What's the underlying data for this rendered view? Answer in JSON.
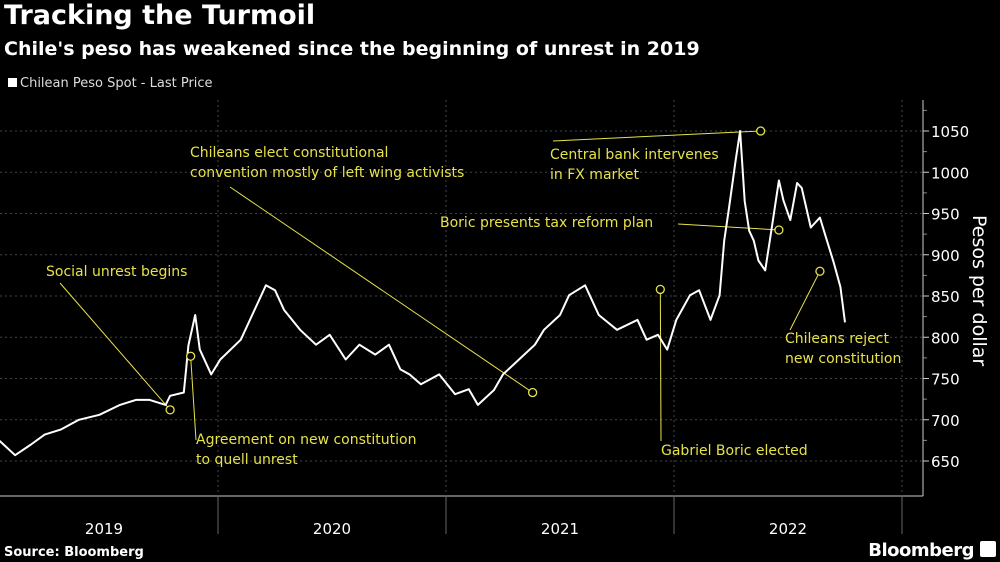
{
  "title": "Tracking the Turmoil",
  "subtitle": "Chile's peso has weakened since the beginning of unrest in 2019",
  "legend": "Chilean Peso Spot - Last Price",
  "source": "Source: Bloomberg",
  "brand": "Bloomberg",
  "colors": {
    "line": "#ffffff",
    "annotation": "#e6e24a",
    "background": "#000000"
  },
  "chart_data": {
    "type": "line",
    "title": "Tracking the Turmoil",
    "ylabel": "Pesos per dollar",
    "ylim": [
      610,
      1085
    ],
    "yticks": [
      650,
      700,
      750,
      800,
      850,
      900,
      950,
      1000,
      1050
    ],
    "xticks": [
      "2019",
      "2020",
      "2021",
      "2022"
    ],
    "grid": true,
    "legend_position": "top-left",
    "series": [
      {
        "name": "Chilean Peso Spot - Last Price",
        "x": [
          2019.04,
          2019.11,
          2019.18,
          2019.24,
          2019.31,
          2019.39,
          2019.48,
          2019.57,
          2019.64,
          2019.7,
          2019.77,
          2019.79,
          2019.85,
          2019.86,
          2019.87,
          2019.9,
          2019.92,
          2019.97,
          2020.01,
          2020.1,
          2020.16,
          2020.21,
          2020.25,
          2020.29,
          2020.36,
          2020.43,
          2020.49,
          2020.56,
          2020.62,
          2020.69,
          2020.75,
          2020.8,
          2020.84,
          2020.89,
          2020.97,
          2021.04,
          2021.1,
          2021.14,
          2021.21,
          2021.25,
          2021.32,
          2021.39,
          2021.43,
          2021.5,
          2021.54,
          2021.61,
          2021.67,
          2021.75,
          2021.84,
          2021.88,
          2021.93,
          2021.97,
          2022.01,
          2022.07,
          2022.11,
          2022.16,
          2022.2,
          2022.22,
          2022.24,
          2022.27,
          2022.29,
          2022.31,
          2022.33,
          2022.35,
          2022.37,
          2022.4,
          2022.42,
          2022.46,
          2022.48,
          2022.51,
          2022.54,
          2022.56,
          2022.6,
          2022.64,
          2022.68,
          2022.7,
          2022.73,
          2022.75
        ],
        "y": [
          675,
          657,
          670,
          682,
          688,
          700,
          706,
          718,
          724,
          724,
          718,
          729,
          733,
          761,
          790,
          827,
          785,
          755,
          773,
          797,
          833,
          863,
          857,
          833,
          809,
          791,
          803,
          773,
          791,
          779,
          791,
          761,
          755,
          743,
          755,
          731,
          737,
          718,
          736,
          755,
          773,
          791,
          809,
          827,
          851,
          863,
          827,
          809,
          821,
          797,
          803,
          785,
          821,
          851,
          857,
          821,
          851,
          917,
          954,
          1014,
          1050,
          965,
          929,
          917,
          893,
          881,
          917,
          990,
          966,
          942,
          987,
          981,
          933,
          945,
          909,
          891,
          861,
          818
        ]
      }
    ],
    "annotations": [
      {
        "text": "Social unrest begins",
        "x": 2019.79,
        "y": 712
      },
      {
        "text": "Agreement on new constitution\nto quell unrest",
        "x": 2019.88,
        "y": 777
      },
      {
        "text": "Chileans elect constitutional\nconvention mostly of left wing activists",
        "x": 2021.38,
        "y": 733
      },
      {
        "text": "Gabriel Boric elected",
        "x": 2021.94,
        "y": 858
      },
      {
        "text": "Boric presents tax reform plan",
        "x": 2022.46,
        "y": 930
      },
      {
        "text": "Central bank intervenes\nin FX market",
        "x": 2022.38,
        "y": 1050
      },
      {
        "text": "Chileans reject\nnew constitution",
        "x": 2022.64,
        "y": 880
      }
    ]
  }
}
